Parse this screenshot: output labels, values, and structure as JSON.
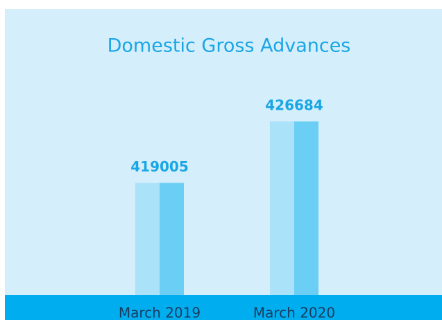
{
  "chart_data": {
    "type": "bar",
    "title": "Domestic Gross Advances",
    "categories": [
      "March 2019",
      "March 2020"
    ],
    "values": [
      419005,
      426684
    ],
    "colors": [
      "#aae2f9",
      "#6bcff5"
    ],
    "ylim": [
      405000,
      433000
    ]
  }
}
